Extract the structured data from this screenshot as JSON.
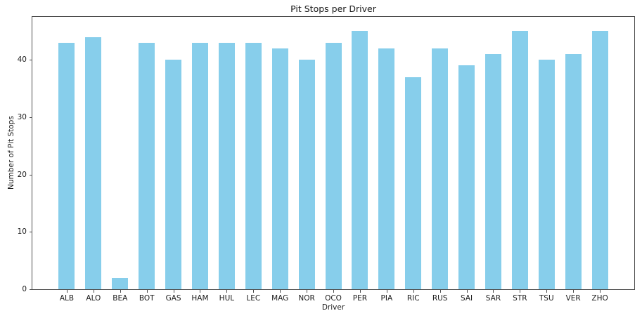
{
  "chart_data": {
    "type": "bar",
    "title": "Pit Stops per Driver",
    "xlabel": "Driver",
    "ylabel": "Number of Pit Stops",
    "categories": [
      "ALB",
      "ALO",
      "BEA",
      "BOT",
      "GAS",
      "HAM",
      "HUL",
      "LEC",
      "MAG",
      "NOR",
      "OCO",
      "PER",
      "PIA",
      "RIC",
      "RUS",
      "SAI",
      "SAR",
      "STR",
      "TSU",
      "VER",
      "ZHO"
    ],
    "values": [
      43,
      44,
      2,
      43,
      40,
      43,
      43,
      43,
      42,
      40,
      43,
      45,
      42,
      37,
      42,
      39,
      41,
      45,
      40,
      41,
      45
    ],
    "yticks": [
      0,
      10,
      20,
      30,
      40
    ],
    "ylim": [
      0,
      47.5
    ],
    "bar_color": "#87CEEB",
    "grid": false,
    "legend": "none"
  }
}
